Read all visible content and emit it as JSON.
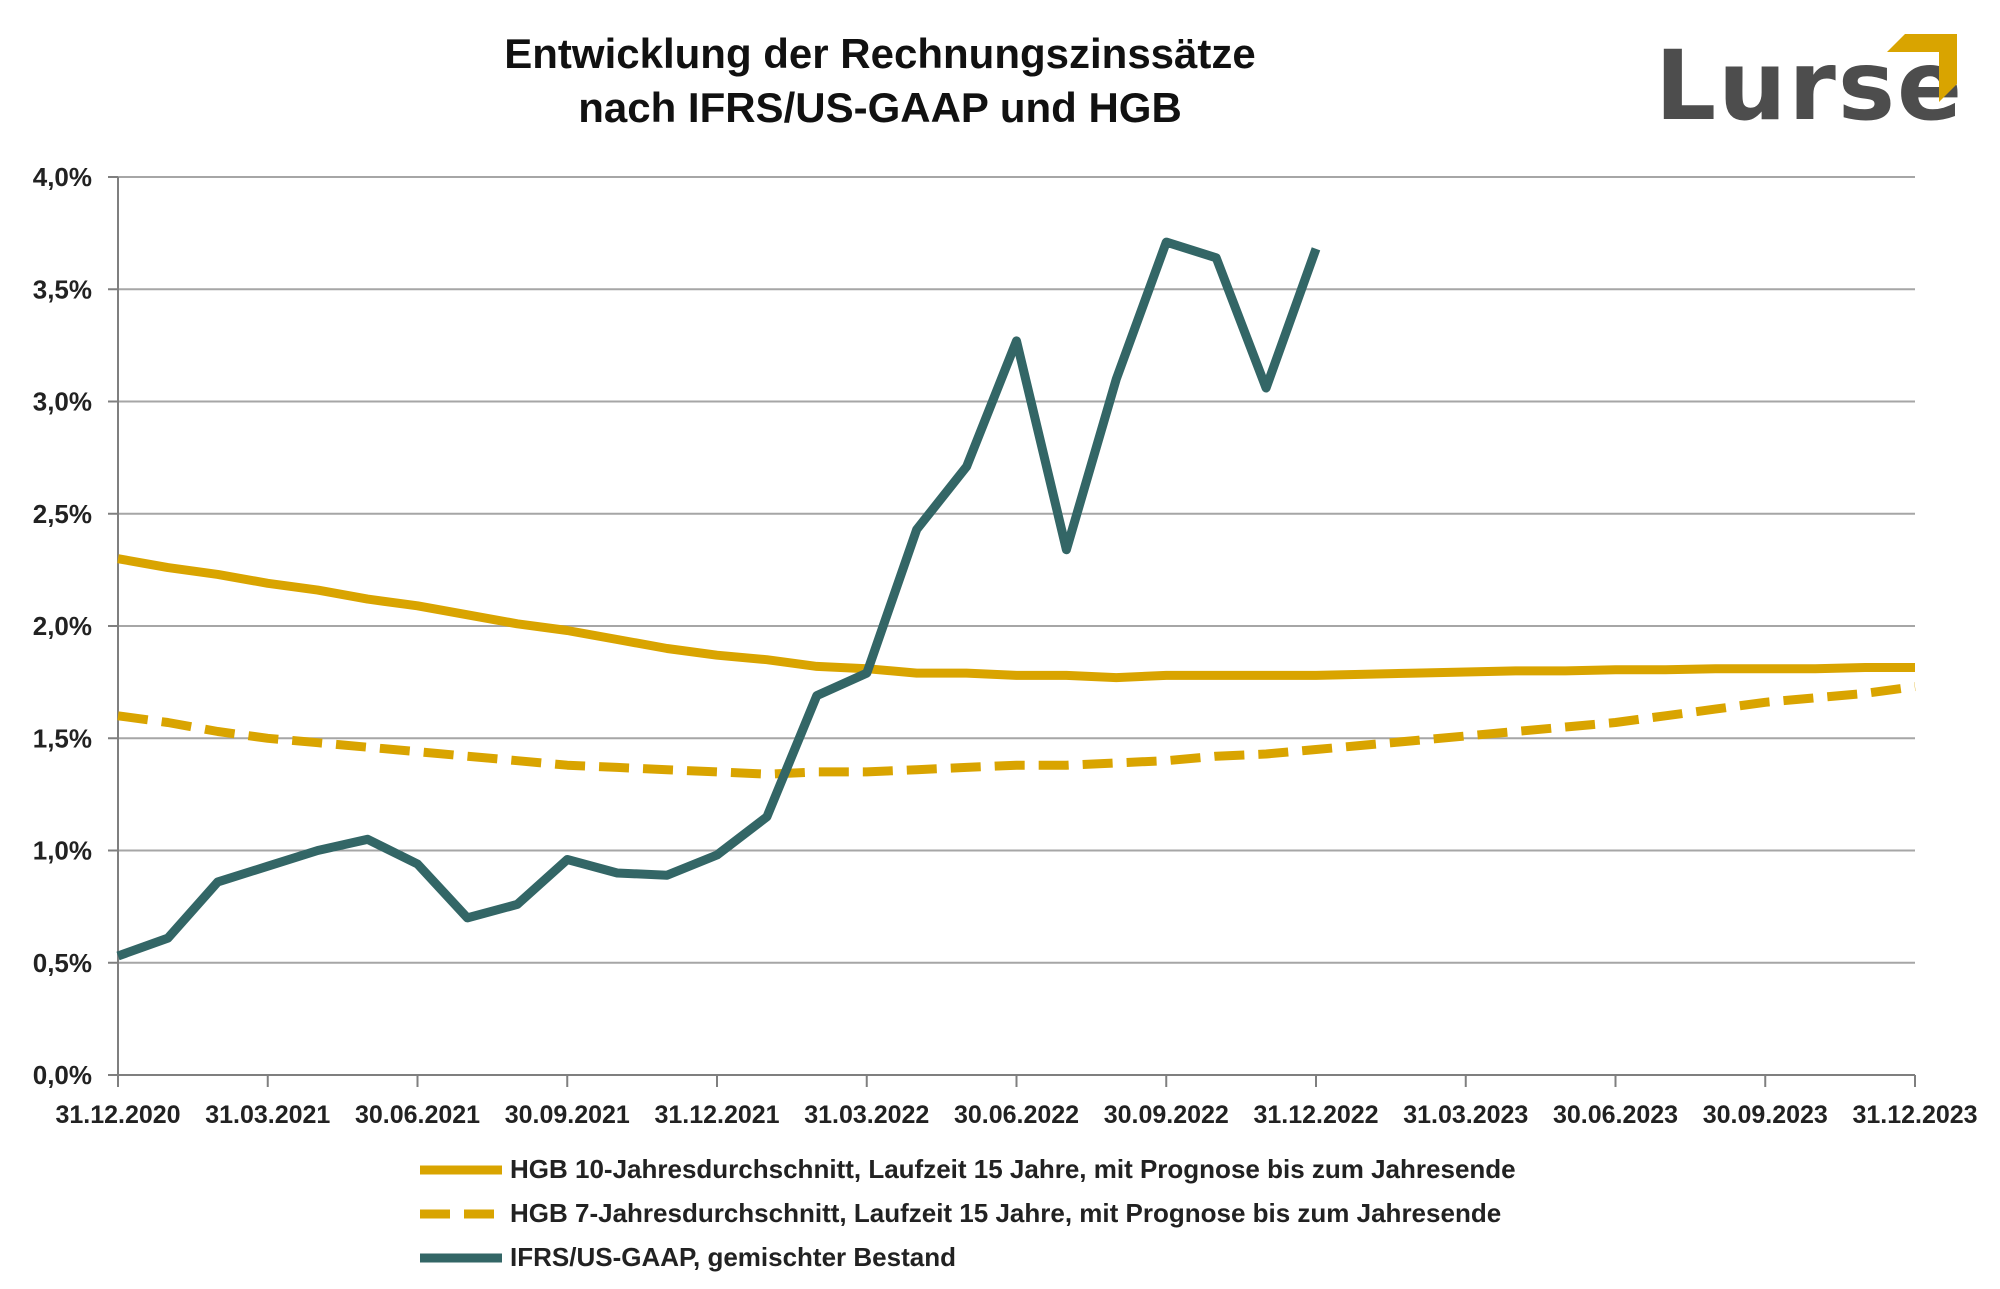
{
  "title_line1": "Entwicklung der Rechnungszinssätze",
  "title_line2": "nach IFRS/US-GAAP und HGB",
  "logo": {
    "text": "Lurse",
    "accent_color": "#d9a400",
    "text_color": "#4d4d4d"
  },
  "chart_data": {
    "type": "line",
    "ylim": [
      0,
      4
    ],
    "yticks": [
      0,
      0.5,
      1,
      1.5,
      2,
      2.5,
      3,
      3.5,
      4
    ],
    "ytick_labels": [
      "0,0%",
      "0,5%",
      "1,0%",
      "1,5%",
      "2,0%",
      "2,5%",
      "3,0%",
      "3,5%",
      "4,0%"
    ],
    "xlim": [
      0,
      36
    ],
    "xticks": [
      0,
      3,
      6,
      9,
      12,
      15,
      18,
      21,
      24,
      27,
      30,
      33,
      36
    ],
    "xtick_labels": [
      "31.12.2020",
      "31.03.2021",
      "30.06.2021",
      "30.09.2021",
      "31.12.2021",
      "31.03.2022",
      "30.06.2022",
      "30.09.2022",
      "31.12.2022",
      "31.03.2023",
      "30.06.2023",
      "30.09.2023",
      "31.12.2023"
    ],
    "x_unit": "months since 31.12.2020",
    "grid": true,
    "legend_position": "bottom",
    "series": [
      {
        "name": "HGB 10-Jahresdurchschnitt, Laufzeit 15 Jahre, mit Prognose bis zum Jahresende",
        "color": "#d9a400",
        "style": "solid",
        "x": [
          0,
          1,
          2,
          3,
          4,
          5,
          6,
          7,
          8,
          9,
          10,
          11,
          12,
          13,
          14,
          15,
          16,
          17,
          18,
          19,
          20,
          21,
          22,
          23,
          24,
          25,
          26,
          27,
          28,
          29,
          30,
          31,
          32,
          33,
          34,
          35,
          36
        ],
        "values": [
          2.3,
          2.26,
          2.23,
          2.19,
          2.16,
          2.12,
          2.09,
          2.05,
          2.01,
          1.98,
          1.94,
          1.9,
          1.87,
          1.85,
          1.82,
          1.81,
          1.79,
          1.79,
          1.78,
          1.78,
          1.77,
          1.78,
          1.78,
          1.78,
          1.78,
          1.785,
          1.79,
          1.795,
          1.8,
          1.8,
          1.805,
          1.805,
          1.81,
          1.81,
          1.81,
          1.815,
          1.815
        ]
      },
      {
        "name": "HGB 7-Jahresdurchschnitt, Laufzeit 15 Jahre, mit Prognose bis zum Jahresende",
        "color": "#d9a400",
        "style": "dashed",
        "x": [
          0,
          1,
          2,
          3,
          4,
          5,
          6,
          7,
          8,
          9,
          10,
          11,
          12,
          13,
          14,
          15,
          16,
          17,
          18,
          19,
          20,
          21,
          22,
          23,
          24,
          25,
          26,
          27,
          28,
          29,
          30,
          31,
          32,
          33,
          34,
          35,
          36
        ],
        "values": [
          1.6,
          1.57,
          1.53,
          1.5,
          1.48,
          1.46,
          1.44,
          1.42,
          1.4,
          1.38,
          1.37,
          1.36,
          1.35,
          1.34,
          1.35,
          1.35,
          1.36,
          1.37,
          1.38,
          1.38,
          1.39,
          1.4,
          1.42,
          1.43,
          1.45,
          1.47,
          1.49,
          1.51,
          1.53,
          1.55,
          1.57,
          1.6,
          1.63,
          1.66,
          1.68,
          1.7,
          1.73
        ]
      },
      {
        "name": "IFRS/US-GAAP, gemischter Bestand",
        "color": "#336666",
        "style": "solid",
        "x": [
          0,
          1,
          2,
          3,
          4,
          5,
          6,
          7,
          8,
          9,
          10,
          11,
          12,
          13,
          14,
          15,
          16,
          17,
          18,
          19,
          20,
          21,
          22,
          23,
          24
        ],
        "values": [
          0.53,
          0.61,
          0.86,
          0.93,
          1.0,
          1.05,
          0.94,
          0.7,
          0.76,
          0.96,
          0.9,
          0.89,
          0.98,
          1.15,
          1.69,
          1.79,
          2.43,
          2.71,
          3.27,
          2.34,
          3.1,
          3.71,
          3.64,
          3.06,
          3.68
        ]
      }
    ]
  }
}
